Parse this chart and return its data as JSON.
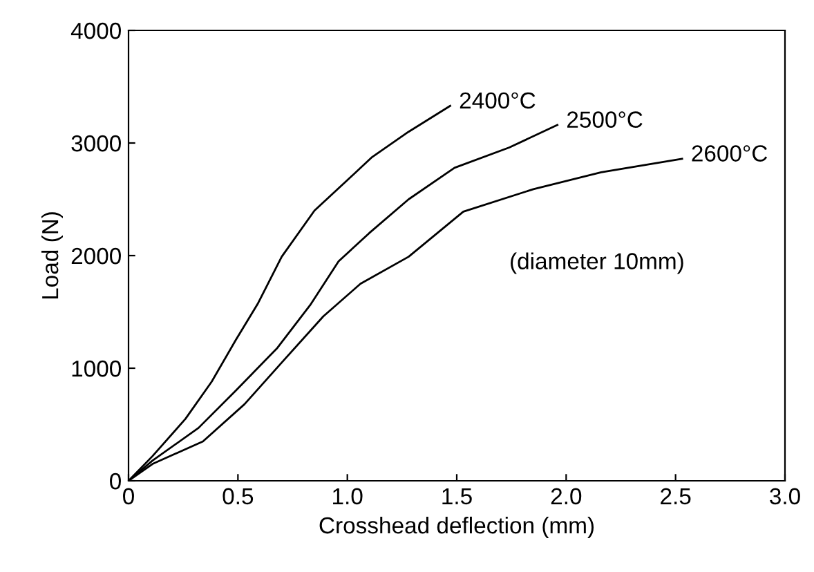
{
  "chart_data": {
    "type": "line",
    "xlabel": "Crosshead deflection (mm)",
    "ylabel": "Load (N)",
    "xlim": [
      0,
      3.0
    ],
    "ylim": [
      0,
      4000
    ],
    "xticks": [
      0,
      0.5,
      {
        "value": 1,
        "label": "1.0"
      },
      1.5,
      {
        "value": 2,
        "label": "2.0"
      },
      2.5,
      {
        "value": 3,
        "label": "3.0"
      }
    ],
    "yticks": [
      0,
      1000,
      2000,
      3000,
      4000
    ],
    "grid": false,
    "marker": "none",
    "line_style": "solid",
    "annotations": [
      "(diameter 10mm)"
    ],
    "series": [
      {
        "name": "2400°C",
        "color": "#000000",
        "x": [
          0,
          0.11,
          0.26,
          0.38,
          0.49,
          0.59,
          0.7,
          0.85,
          1.0,
          1.11,
          1.28,
          1.47
        ],
        "values": [
          0,
          220,
          550,
          880,
          1250,
          1570,
          1990,
          2400,
          2670,
          2870,
          3100,
          3330
        ]
      },
      {
        "name": "2500°C",
        "color": "#000000",
        "x": [
          0,
          0.11,
          0.32,
          0.49,
          0.68,
          0.83,
          0.96,
          1.1,
          1.28,
          1.49,
          1.74,
          1.96
        ],
        "values": [
          0,
          180,
          470,
          800,
          1180,
          1560,
          1950,
          2200,
          2500,
          2780,
          2960,
          3160
        ]
      },
      {
        "name": "2600°C",
        "color": "#000000",
        "x": [
          0,
          0.11,
          0.34,
          0.53,
          0.7,
          0.89,
          1.06,
          1.28,
          1.53,
          1.85,
          2.16,
          2.53
        ],
        "values": [
          0,
          150,
          350,
          680,
          1050,
          1460,
          1750,
          1990,
          2390,
          2590,
          2740,
          2860
        ]
      }
    ]
  }
}
